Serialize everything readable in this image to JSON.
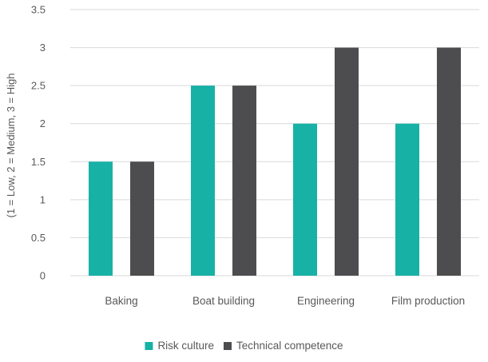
{
  "chart_data": {
    "type": "bar",
    "categories": [
      "Baking",
      "Boat building",
      "Engineering",
      "Film production"
    ],
    "series": [
      {
        "name": "Risk culture",
        "color": "#17b1a6",
        "values": [
          1.5,
          2.5,
          2,
          2
        ]
      },
      {
        "name": "Technical competence",
        "color": "#4d4d4f",
        "values": [
          1.5,
          2.5,
          3,
          3
        ]
      }
    ],
    "ylabel": "(1 = Low, 2 = Medium, 3 = High",
    "ylim": [
      0,
      3.5
    ],
    "yticks": [
      0,
      0.5,
      1,
      1.5,
      2,
      2.5,
      3,
      3.5
    ],
    "ytick_labels": [
      "0",
      "0.5",
      "1",
      "1.5",
      "2",
      "2.5",
      "3",
      "3.5"
    ],
    "grid": true,
    "gridline_color": "#d9d9d9",
    "legend_position": "bottom"
  }
}
